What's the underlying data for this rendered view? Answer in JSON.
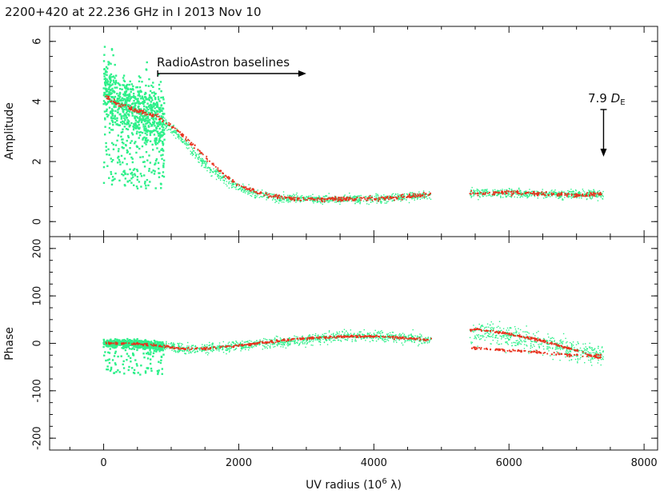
{
  "chart_data": {
    "type": "scatter",
    "title": "2200+420 at 22.236 GHz in I  2013 Nov 10",
    "xlabel": "UV radius  (10",
    "xlabel_sup": "6",
    "xlabel_unit": " λ)",
    "xlim": [
      -800,
      8200
    ],
    "x_ticks": [
      0,
      2000,
      4000,
      6000,
      8000
    ],
    "series_colors": {
      "data": "#2ef08a",
      "model": "#e8321e"
    },
    "annotations": {
      "baselines": "RadioAstron baselines",
      "baselines_arrow_x": [
        800,
        3000
      ],
      "earth_diameter": "7.9",
      "earth_symbol": "D",
      "earth_subscript": "E",
      "earth_marker_x": 7400
    },
    "panels": [
      {
        "id": "amplitude",
        "ylabel": "Amplitude",
        "ylim": [
          -0.5,
          6.5
        ],
        "y_ticks": [
          0,
          2,
          4,
          6
        ],
        "data_trend": [
          [
            10,
            4.6
          ],
          [
            100,
            4.2
          ],
          [
            300,
            3.9
          ],
          [
            600,
            3.7
          ],
          [
            800,
            3.5
          ],
          [
            1000,
            3.1
          ],
          [
            1300,
            2.4
          ],
          [
            1600,
            1.7
          ],
          [
            1900,
            1.25
          ],
          [
            2200,
            0.95
          ],
          [
            2600,
            0.78
          ],
          [
            3000,
            0.75
          ],
          [
            3500,
            0.75
          ],
          [
            4000,
            0.76
          ],
          [
            4400,
            0.8
          ],
          [
            4800,
            0.9
          ],
          [
            5450,
            0.95
          ],
          [
            6000,
            0.95
          ],
          [
            6500,
            0.92
          ],
          [
            7000,
            0.9
          ],
          [
            7300,
            0.9
          ]
        ],
        "model_trend": [
          [
            10,
            4.2
          ],
          [
            200,
            3.9
          ],
          [
            500,
            3.7
          ],
          [
            800,
            3.5
          ],
          [
            1100,
            3.0
          ],
          [
            1400,
            2.4
          ],
          [
            1700,
            1.7
          ],
          [
            2000,
            1.2
          ],
          [
            2300,
            0.95
          ],
          [
            2700,
            0.78
          ],
          [
            3200,
            0.74
          ],
          [
            3700,
            0.75
          ],
          [
            4200,
            0.78
          ],
          [
            4800,
            0.9
          ],
          [
            5450,
            0.95
          ],
          [
            6000,
            0.98
          ],
          [
            6500,
            0.92
          ],
          [
            7000,
            0.88
          ],
          [
            7400,
            0.92
          ]
        ],
        "gap": [
          4850,
          5420
        ]
      },
      {
        "id": "phase",
        "ylabel": "Phase",
        "ylim": [
          -225,
          225
        ],
        "y_ticks": [
          -200,
          -100,
          0,
          100,
          200
        ],
        "data_trend": [
          [
            10,
            0
          ],
          [
            400,
            0
          ],
          [
            800,
            -5
          ],
          [
            1200,
            -10
          ],
          [
            1600,
            -10
          ],
          [
            2000,
            -5
          ],
          [
            2400,
            0
          ],
          [
            2800,
            5
          ],
          [
            3200,
            10
          ],
          [
            3600,
            15
          ],
          [
            4000,
            15
          ],
          [
            4400,
            12
          ],
          [
            4800,
            8
          ],
          [
            5500,
            25
          ],
          [
            6000,
            15
          ],
          [
            6500,
            0
          ],
          [
            7000,
            -15
          ],
          [
            7300,
            -25
          ]
        ],
        "model_trend": [
          [
            10,
            0
          ],
          [
            400,
            0
          ],
          [
            800,
            -5
          ],
          [
            1200,
            -12
          ],
          [
            1600,
            -10
          ],
          [
            2000,
            -5
          ],
          [
            2400,
            2
          ],
          [
            2800,
            8
          ],
          [
            3200,
            12
          ],
          [
            3600,
            15
          ],
          [
            4000,
            15
          ],
          [
            4400,
            12
          ],
          [
            4800,
            8
          ],
          [
            5500,
            30
          ],
          [
            6000,
            20
          ],
          [
            6500,
            5
          ],
          [
            7000,
            -15
          ],
          [
            7300,
            -30
          ]
        ],
        "model_lower_branch": [
          [
            5500,
            -10
          ],
          [
            6000,
            -15
          ],
          [
            6500,
            -20
          ],
          [
            7000,
            -25
          ],
          [
            7300,
            -25
          ]
        ],
        "gap": [
          4850,
          5420
        ]
      }
    ]
  }
}
